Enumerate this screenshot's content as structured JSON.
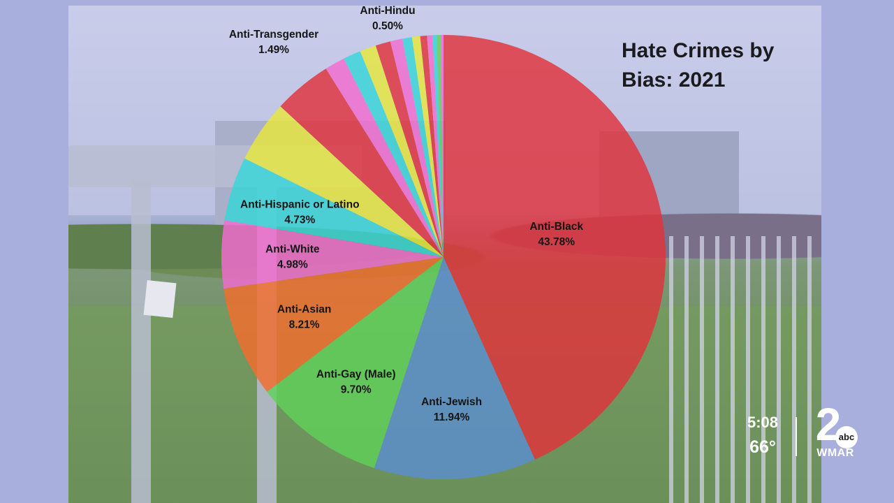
{
  "chart_data": {
    "type": "pie",
    "title": "Hate Crimes by Bias: 2021",
    "unit": "%",
    "slices": [
      {
        "label": "Anti-Black",
        "value": 43.78,
        "color": "#e0323b",
        "labeled": true,
        "display": "43.78%"
      },
      {
        "label": "Anti-Jewish",
        "value": 11.94,
        "color": "#5a8fd0",
        "labeled": true,
        "display": "11.94%"
      },
      {
        "label": "Anti-Gay (Male)",
        "value": 9.7,
        "color": "#5fd15a",
        "labeled": true,
        "display": "9.70%"
      },
      {
        "label": "Anti-Asian",
        "value": 8.21,
        "color": "#f36c2c",
        "labeled": true,
        "display": "8.21%"
      },
      {
        "label": "Anti-White",
        "value": 4.98,
        "color": "#f36bd0",
        "labeled": true,
        "display": "4.98%"
      },
      {
        "label": "Anti-Hispanic or Latino",
        "value": 4.73,
        "color": "#37d5d8",
        "labeled": true,
        "display": "4.73%"
      },
      {
        "label": "",
        "value": 4.6,
        "color": "#e6e83c",
        "labeled": false
      },
      {
        "label": "",
        "value": 4.3,
        "color": "#e0323b",
        "labeled": false
      },
      {
        "label": "",
        "value": 1.49,
        "color": "#f36bd0",
        "labeled": false
      },
      {
        "label": "",
        "value": 1.3,
        "color": "#37d5d8",
        "labeled": false
      },
      {
        "label": "",
        "value": 1.2,
        "color": "#e6e83c",
        "labeled": false
      },
      {
        "label": "",
        "value": 1.1,
        "color": "#e0323b",
        "labeled": false
      },
      {
        "label": "",
        "value": 0.9,
        "color": "#f36bd0",
        "labeled": false
      },
      {
        "label": "",
        "value": 0.7,
        "color": "#37d5d8",
        "labeled": false
      },
      {
        "label": "",
        "value": 0.6,
        "color": "#e6e83c",
        "labeled": false
      },
      {
        "label": "",
        "value": 0.5,
        "color": "#e0323b",
        "labeled": false
      },
      {
        "label": "",
        "value": 0.4,
        "color": "#f36bd0",
        "labeled": false
      },
      {
        "label": "",
        "value": 0.3,
        "color": "#37d5d8",
        "labeled": false
      },
      {
        "label": "",
        "value": 0.3,
        "color": "#5fd15a",
        "labeled": false
      },
      {
        "label": "",
        "value": 0.2,
        "color": "#f36bd0",
        "labeled": false
      }
    ],
    "outside_labels": [
      {
        "label": "Anti-Transgender",
        "display": "1.49%"
      },
      {
        "label": "Anti-Hindu",
        "display": "0.50%"
      }
    ]
  },
  "overlay": {
    "time": "5:08",
    "temperature": "66°",
    "channel_number": "2",
    "network": "abc",
    "station": "WMAR"
  }
}
